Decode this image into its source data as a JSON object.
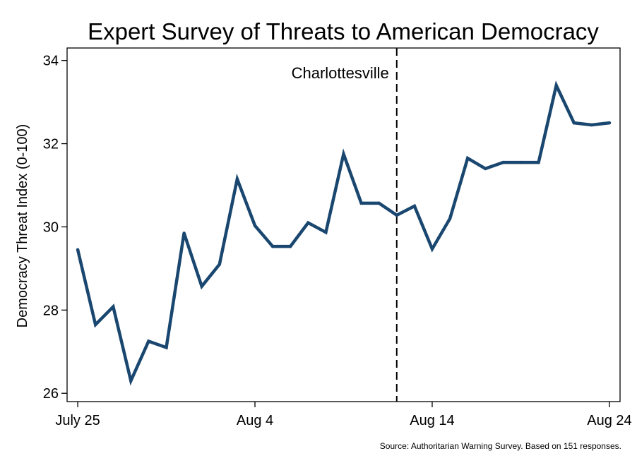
{
  "chart_data": {
    "type": "line",
    "title": "Expert Survey of Threats to American Democracy",
    "xlabel": "",
    "ylabel": "Democracy Threat Index (0-100)",
    "x_tick_labels": [
      "July 25",
      "Aug 4",
      "Aug 14",
      "Aug 24"
    ],
    "x_tick_days": [
      0,
      10,
      20,
      30
    ],
    "y_ticks": [
      26,
      28,
      30,
      32,
      34
    ],
    "ylim": [
      25.8,
      34.3
    ],
    "xlim": [
      -0.6,
      30.6
    ],
    "grid": false,
    "legend": "none",
    "line_color": "#1a476f",
    "series": [
      {
        "name": "",
        "x_dates": [
          "July 25",
          "July 26",
          "July 27",
          "July 28",
          "July 29",
          "July 30",
          "July 31",
          "Aug 1",
          "Aug 2",
          "Aug 3",
          "Aug 4",
          "Aug 5",
          "Aug 6",
          "Aug 7",
          "Aug 8",
          "Aug 9",
          "Aug 10",
          "Aug 11",
          "Aug 12",
          "Aug 13",
          "Aug 14",
          "Aug 15",
          "Aug 16",
          "Aug 17",
          "Aug 18",
          "Aug 19",
          "Aug 20",
          "Aug 21",
          "Aug 22",
          "Aug 23",
          "Aug 24"
        ],
        "values": [
          29.45,
          27.65,
          28.08,
          26.3,
          27.25,
          27.1,
          29.85,
          28.57,
          29.1,
          31.15,
          30.03,
          29.53,
          29.53,
          30.1,
          29.87,
          31.75,
          30.57,
          30.57,
          30.28,
          30.5,
          29.47,
          30.2,
          31.65,
          31.4,
          31.55,
          31.55,
          31.55,
          33.4,
          32.5,
          32.45,
          32.5
        ]
      }
    ],
    "annotations": [
      {
        "text": "Charlottesville",
        "x_date": "Aug 12",
        "style": "dashed vertical line"
      }
    ],
    "source_note": "Source: Authoritarian Warning Survey. Based on 151 responses."
  }
}
